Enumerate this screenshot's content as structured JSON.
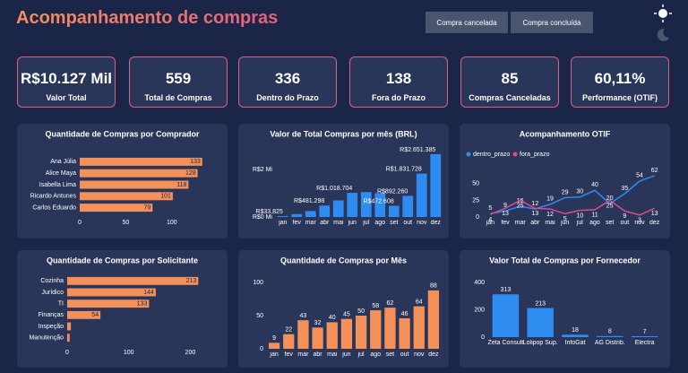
{
  "header": {
    "title": "Acompanhamento de compras",
    "buttons": [
      "Compra cancelada",
      "Compra concluída"
    ]
  },
  "kpis": [
    {
      "value": "R$10.127 Mil",
      "label": "Valor Total"
    },
    {
      "value": "559",
      "label": "Total de Compras"
    },
    {
      "value": "336",
      "label": "Dentro do Prazo"
    },
    {
      "value": "138",
      "label": "Fora do Prazo"
    },
    {
      "value": "85",
      "label": "Compras Canceladas"
    },
    {
      "value": "60,11%",
      "label": "Performance  (OTIF)"
    }
  ],
  "chart_data": [
    {
      "type": "hbar",
      "title": "Quantidade de Compras por Comprador",
      "categories": [
        "Ana Júlia",
        "Alice Maya",
        "Isabella Lima",
        "Ricardo Antunes",
        "Carlos Eduardo"
      ],
      "values": [
        133,
        128,
        118,
        101,
        79
      ],
      "color": "#f4915a",
      "xlim": [
        0,
        140
      ],
      "xticks": [
        0,
        50,
        100
      ]
    },
    {
      "type": "bar",
      "title": "Valor de Total Compras por mês (BRL)",
      "categories": [
        "jan",
        "fev",
        "mar",
        "abr",
        "mai",
        "jun",
        "jul",
        "ago",
        "set",
        "out",
        "nov",
        "dez"
      ],
      "values": [
        33825,
        120000,
        250000,
        481298,
        700000,
        1018704,
        1050000,
        1000000,
        472608,
        892260,
        1831728,
        2651385
      ],
      "value_labels": [
        "R$33.825",
        null,
        null,
        "R$481.298",
        null,
        "R$1.018.704",
        null,
        null,
        "R$472.608",
        "R$892.260",
        "R$1.831.728",
        "R$2.651.385"
      ],
      "color": "#2f8cf0",
      "ylim": [
        0,
        2800000
      ],
      "yticks": [
        {
          "value": 0,
          "label": "R$0 Mi"
        },
        {
          "value": 2000000,
          "label": "R$2 Mi"
        }
      ]
    },
    {
      "type": "line",
      "title": "Acompanhamento  OTIF",
      "categories": [
        "jan",
        "fev",
        "mar",
        "abr",
        "mai",
        "jun",
        "jul",
        "ago",
        "set",
        "out",
        "nov",
        "dez"
      ],
      "series": [
        {
          "name": "dentro_prazo",
          "color": "#2f8cf0",
          "values": [
            5,
            9,
            16,
            12,
            19,
            29,
            30,
            40,
            20,
            35,
            54,
            62
          ]
        },
        {
          "name": "fora_prazo",
          "color": "#e04a8c",
          "values": [
            4,
            13,
            25,
            13,
            12,
            5,
            10,
            11,
            25,
            9,
            3,
            13
          ]
        }
      ],
      "ylim": [
        0,
        70
      ],
      "yticks": [
        0,
        25,
        50
      ],
      "legend": "top-left"
    },
    {
      "type": "hbar",
      "title": "Quantidade de Compras por Solicitante",
      "categories": [
        "Cozinha",
        "Jurídico",
        "TI",
        "Finanças",
        "Inspeção",
        "Manutenção"
      ],
      "values": [
        213,
        144,
        133,
        54,
        6,
        4
      ],
      "value_labels": [
        "213",
        "144",
        "133",
        "54",
        null,
        null
      ],
      "color": "#f4915a",
      "xlim": [
        0,
        230
      ],
      "xticks": [
        0,
        100,
        200
      ]
    },
    {
      "type": "bar",
      "title": "Quantidade de Compras por Mês",
      "categories": [
        "jan",
        "fev",
        "mar",
        "abr",
        "mai",
        "jun",
        "jul",
        "ago",
        "set",
        "out",
        "nov",
        "dez"
      ],
      "values": [
        9,
        22,
        43,
        32,
        40,
        45,
        50,
        58,
        62,
        46,
        64,
        88
      ],
      "color": "#f4915a",
      "ylim": [
        0,
        100
      ],
      "yticks": [
        0,
        50,
        100
      ]
    },
    {
      "type": "bar",
      "title": "Valor Total de Compras por Fornecedor",
      "categories": [
        "Zeta Consult",
        "Lolipop Sup.",
        "InfoGat",
        "AG Distrib.",
        "Electra"
      ],
      "values": [
        313,
        213,
        18,
        8,
        7
      ],
      "color": "#2f8cf0",
      "ylim": [
        0,
        400
      ],
      "yticks": [
        0,
        200,
        400
      ]
    }
  ]
}
